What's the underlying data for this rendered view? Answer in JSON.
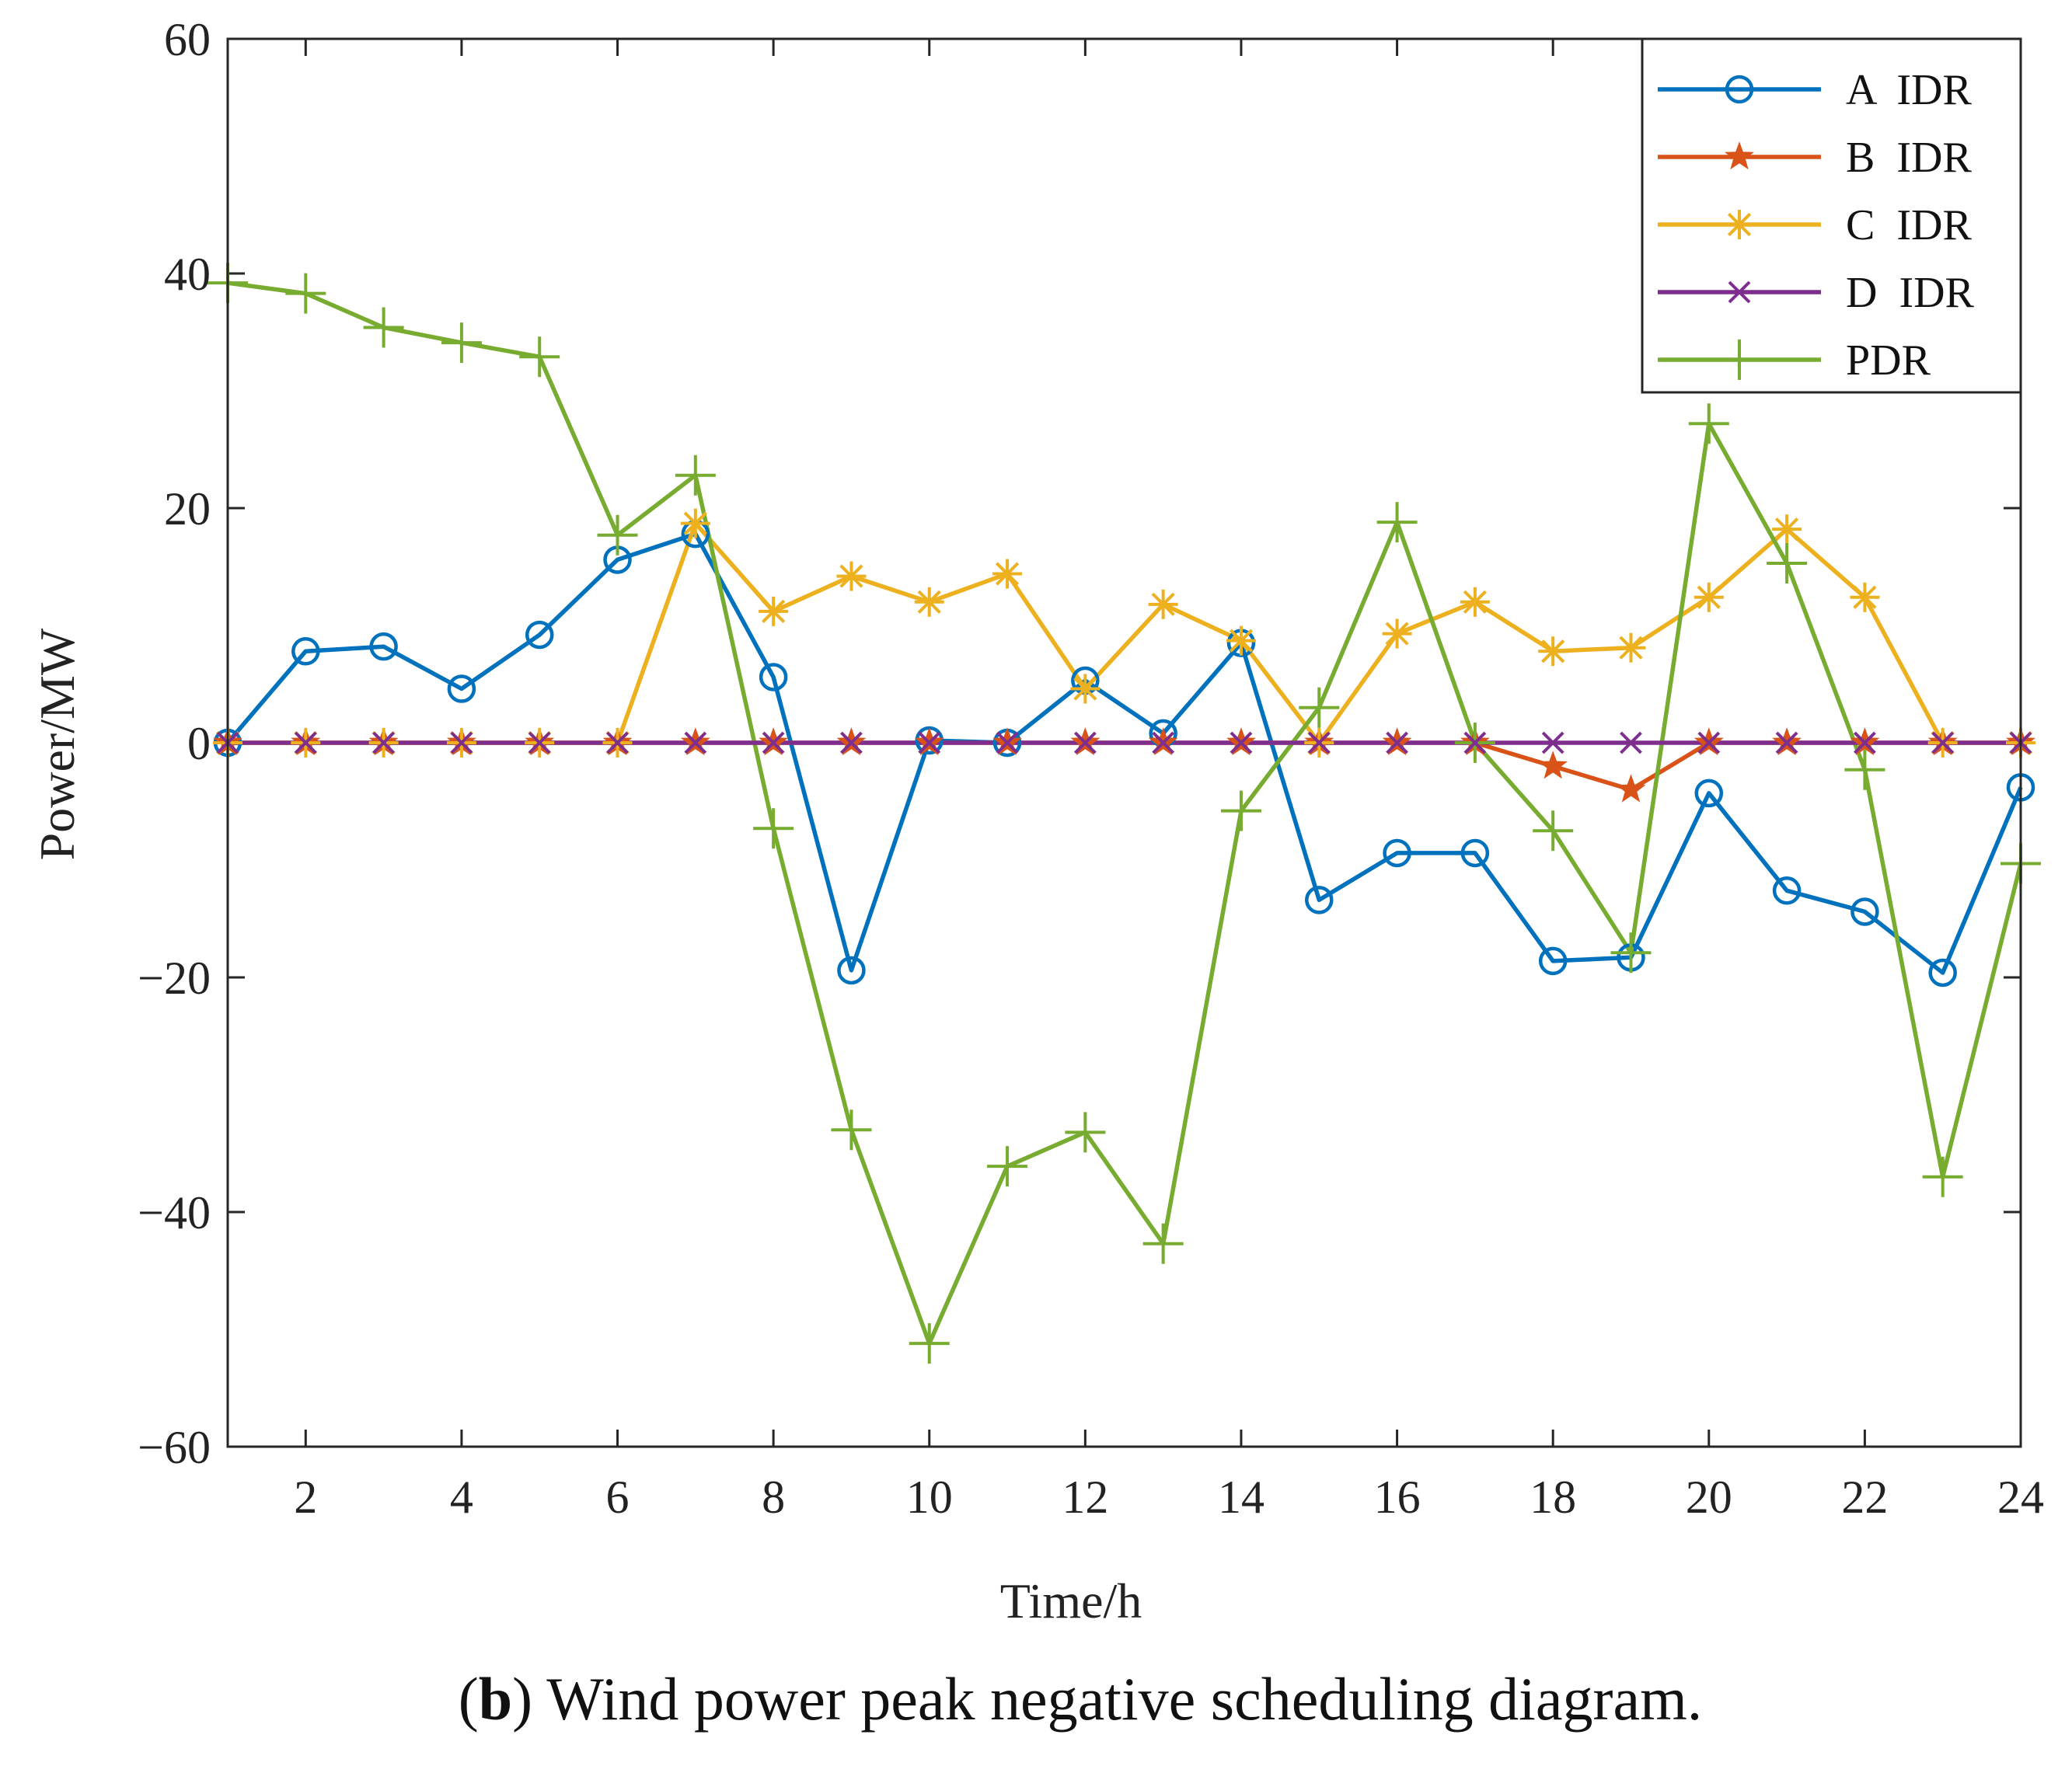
{
  "chart_data": {
    "type": "line",
    "title": "",
    "xlabel": "Time/h",
    "ylabel": "Power/MW",
    "xlim": [
      1,
      24
    ],
    "ylim": [
      -60,
      60
    ],
    "xticks": [
      2,
      4,
      6,
      8,
      10,
      12,
      14,
      16,
      18,
      20,
      22,
      24
    ],
    "yticks": [
      -60,
      -40,
      -20,
      0,
      20,
      40,
      60
    ],
    "x": [
      1,
      2,
      3,
      4,
      5,
      6,
      7,
      8,
      9,
      10,
      11,
      12,
      13,
      14,
      15,
      16,
      17,
      18,
      19,
      20,
      21,
      22,
      23,
      24
    ],
    "legend_position": "top-right",
    "series": [
      {
        "name": "A  IDR",
        "color": "#0072BD",
        "marker": "circle",
        "values": [
          0,
          7.8,
          8.2,
          4.6,
          9.2,
          15.6,
          17.8,
          5.6,
          -19.4,
          0.2,
          0,
          5.3,
          0.8,
          8.5,
          -13.4,
          -9.4,
          -9.4,
          -18.6,
          -18.3,
          -4.3,
          -12.6,
          -14.4,
          -19.6,
          -3.8
        ]
      },
      {
        "name": "B  IDR",
        "color": "#D95319",
        "marker": "star",
        "values": [
          0,
          0,
          0,
          0,
          0,
          0,
          0,
          0,
          0,
          0,
          0,
          0,
          0,
          0,
          0,
          0,
          0,
          -2,
          -4,
          0,
          0,
          0,
          0,
          0
        ]
      },
      {
        "name": "C  IDR",
        "color": "#EDB120",
        "marker": "asterisk",
        "values": [
          0,
          0,
          0,
          0,
          0,
          0,
          18.7,
          11.2,
          14.2,
          12,
          14.4,
          4.6,
          11.8,
          8.7,
          0,
          9.3,
          12,
          7.8,
          8.1,
          12.4,
          18.2,
          12.4,
          0,
          0
        ]
      },
      {
        "name": "D  IDR",
        "color": "#7E2F8E",
        "marker": "x",
        "values": [
          0,
          0,
          0,
          0,
          0,
          0,
          0,
          0,
          0,
          0,
          0,
          0,
          0,
          0,
          0,
          0,
          0,
          0,
          0,
          0,
          0,
          0,
          0,
          0
        ]
      },
      {
        "name": "PDR",
        "color": "#77AC30",
        "marker": "plus",
        "values": [
          39.2,
          38.3,
          35.4,
          34.1,
          32.9,
          17.7,
          22.8,
          -7.3,
          -33,
          -51.2,
          -36.1,
          -33.2,
          -42.7,
          -5.8,
          3,
          18.8,
          0,
          -7.5,
          -17.9,
          27.2,
          15.3,
          -2.3,
          -37,
          -10.3
        ]
      }
    ]
  },
  "caption": {
    "bold_part": "b",
    "text": ") Wind power peak negative scheduling diagram.",
    "open_paren": "("
  }
}
